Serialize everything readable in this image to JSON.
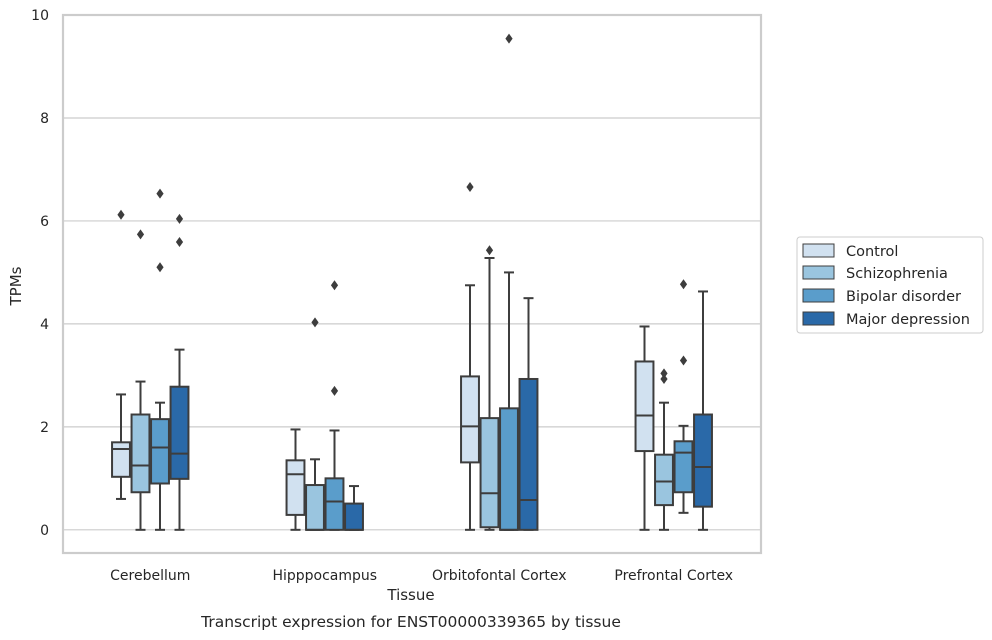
{
  "chart_data": {
    "type": "box",
    "title": "",
    "caption": "Transcript expression for ENST00000339365 by tissue",
    "xlabel": "Tissue",
    "ylabel": "TPMs",
    "ylim": [
      -0.45,
      10
    ],
    "yticks": [
      0,
      2,
      4,
      6,
      8,
      10
    ],
    "grid": "horizontal",
    "legend_position": "right",
    "categories": [
      "Cerebellum",
      "Hipppocampus",
      "Orbitofontal Cortex",
      "Prefrontal Cortex"
    ],
    "series": [
      {
        "name": "Control",
        "color": "#d1e1f0",
        "boxes": [
          {
            "whisker_low": 0.6,
            "q1": 1.03,
            "median": 1.57,
            "q3": 1.7,
            "whisker_high": 2.63,
            "outliers": [
              6.12
            ]
          },
          {
            "whisker_low": 0.0,
            "q1": 0.29,
            "median": 1.08,
            "q3": 1.35,
            "whisker_high": 1.95,
            "outliers": []
          },
          {
            "whisker_low": 0.0,
            "q1": 1.31,
            "median": 2.01,
            "q3": 2.98,
            "whisker_high": 4.75,
            "outliers": [
              6.66
            ]
          },
          {
            "whisker_low": 0.0,
            "q1": 1.53,
            "median": 2.22,
            "q3": 3.27,
            "whisker_high": 3.95,
            "outliers": []
          }
        ]
      },
      {
        "name": "Schizophrenia",
        "color": "#9ac5df",
        "boxes": [
          {
            "whisker_low": 0.0,
            "q1": 0.73,
            "median": 1.25,
            "q3": 2.24,
            "whisker_high": 2.88,
            "outliers": [
              5.74
            ]
          },
          {
            "whisker_low": 0.0,
            "q1": 0.0,
            "median": 0.0,
            "q3": 0.87,
            "whisker_high": 1.37,
            "outliers": [
              4.03
            ]
          },
          {
            "whisker_low": 0.0,
            "q1": 0.05,
            "median": 0.71,
            "q3": 2.17,
            "whisker_high": 5.28,
            "outliers": [
              5.43
            ]
          },
          {
            "whisker_low": 0.0,
            "q1": 0.48,
            "median": 0.94,
            "q3": 1.46,
            "whisker_high": 2.47,
            "outliers": [
              2.93,
              3.04
            ]
          }
        ]
      },
      {
        "name": "Bipolar disorder",
        "color": "#5a9dcb",
        "boxes": [
          {
            "whisker_low": 0.0,
            "q1": 0.9,
            "median": 1.6,
            "q3": 2.15,
            "whisker_high": 2.47,
            "outliers": [
              5.1,
              6.53
            ]
          },
          {
            "whisker_low": 0.0,
            "q1": 0.0,
            "median": 0.55,
            "q3": 1.0,
            "whisker_high": 1.93,
            "outliers": [
              2.7,
              4.75
            ]
          },
          {
            "whisker_low": 0.0,
            "q1": 0.0,
            "median": 0.0,
            "q3": 2.36,
            "whisker_high": 5.0,
            "outliers": [
              9.54
            ]
          },
          {
            "whisker_low": 0.33,
            "q1": 0.73,
            "median": 1.5,
            "q3": 1.72,
            "whisker_high": 2.02,
            "outliers": [
              3.29,
              4.77
            ]
          }
        ]
      },
      {
        "name": "Major depression",
        "color": "#2a69a8",
        "boxes": [
          {
            "whisker_low": 0.0,
            "q1": 0.99,
            "median": 1.48,
            "q3": 2.78,
            "whisker_high": 3.5,
            "outliers": [
              5.59,
              6.04
            ]
          },
          {
            "whisker_low": 0.0,
            "q1": 0.0,
            "median": 0.0,
            "q3": 0.51,
            "whisker_high": 0.85,
            "outliers": []
          },
          {
            "whisker_low": 0.0,
            "q1": 0.0,
            "median": 0.58,
            "q3": 2.93,
            "whisker_high": 4.5,
            "outliers": []
          },
          {
            "whisker_low": 0.0,
            "q1": 0.45,
            "median": 1.22,
            "q3": 2.24,
            "whisker_high": 4.63,
            "outliers": []
          }
        ]
      }
    ]
  }
}
